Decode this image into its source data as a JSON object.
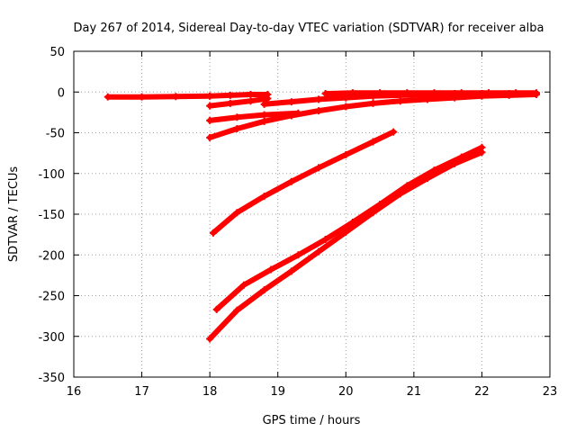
{
  "chart_data": {
    "type": "scatter",
    "title": "Day 267 of 2014, Sidereal Day-to-day VTEC variation (SDTVAR) for receiver alba",
    "xlabel": "GPS time / hours",
    "ylabel": "SDTVAR / TECUs",
    "xlim": [
      16,
      23
    ],
    "ylim": [
      -350,
      50
    ],
    "xticks": [
      16,
      17,
      18,
      19,
      20,
      21,
      22,
      23
    ],
    "yticks": [
      -350,
      -300,
      -250,
      -200,
      -150,
      -100,
      -50,
      0,
      50
    ],
    "grid": true,
    "legend": "none",
    "marker": "plus",
    "color": "#ff0000",
    "series": [
      {
        "x": [
          16.5,
          17.0,
          17.5,
          18.0
        ],
        "y": [
          -6,
          -6,
          -5.5,
          -5
        ]
      },
      {
        "x": [
          18.0,
          18.3,
          18.6,
          18.85
        ],
        "y": [
          -5,
          -4,
          -3,
          -3
        ]
      },
      {
        "x": [
          18.0,
          18.3,
          18.6,
          18.85
        ],
        "y": [
          -17,
          -14,
          -11,
          -8
        ]
      },
      {
        "x": [
          18.0,
          18.4,
          18.8,
          19.3
        ],
        "y": [
          -35,
          -31,
          -28,
          -26
        ]
      },
      {
        "x": [
          18.0,
          18.4,
          18.8,
          19.2,
          19.6,
          20.0,
          20.4,
          20.8,
          21.2,
          21.6,
          22.0,
          22.4,
          22.8
        ],
        "y": [
          -56,
          -45,
          -36,
          -29,
          -23,
          -18,
          -14,
          -11,
          -9,
          -7,
          -5,
          -4,
          -3
        ]
      },
      {
        "x": [
          18.8,
          19.2,
          19.6,
          20.0,
          20.4,
          20.8,
          21.2,
          21.6,
          22.0,
          22.4,
          22.8
        ],
        "y": [
          -15,
          -12,
          -9,
          -7,
          -5,
          -4,
          -3,
          -2,
          -2,
          -2,
          -2
        ]
      },
      {
        "x": [
          19.7,
          20.1,
          20.5,
          20.9,
          21.3,
          21.7,
          22.1,
          22.5,
          22.8
        ],
        "y": [
          -2,
          -1,
          -1,
          -1,
          -1,
          -1,
          -1,
          -1,
          -1
        ]
      },
      {
        "x": [
          18.05,
          18.4,
          18.8,
          19.2,
          19.6,
          20.0,
          20.4,
          20.7
        ],
        "y": [
          -173,
          -148,
          -128,
          -110,
          -93,
          -77,
          -61,
          -49
        ]
      },
      {
        "x": [
          18.1,
          18.5,
          18.9,
          19.3,
          19.7,
          20.1,
          20.5,
          20.9,
          21.3,
          21.7,
          22.0
        ],
        "y": [
          -267,
          -237,
          -218,
          -200,
          -181,
          -160,
          -138,
          -115,
          -96,
          -80,
          -68
        ]
      },
      {
        "x": [
          18.0,
          18.4,
          18.8,
          19.2,
          19.6,
          20.0,
          20.4,
          20.8,
          21.2,
          21.6,
          22.0
        ],
        "y": [
          -303,
          -268,
          -243,
          -220,
          -196,
          -172,
          -148,
          -125,
          -106,
          -88,
          -74
        ]
      }
    ]
  }
}
